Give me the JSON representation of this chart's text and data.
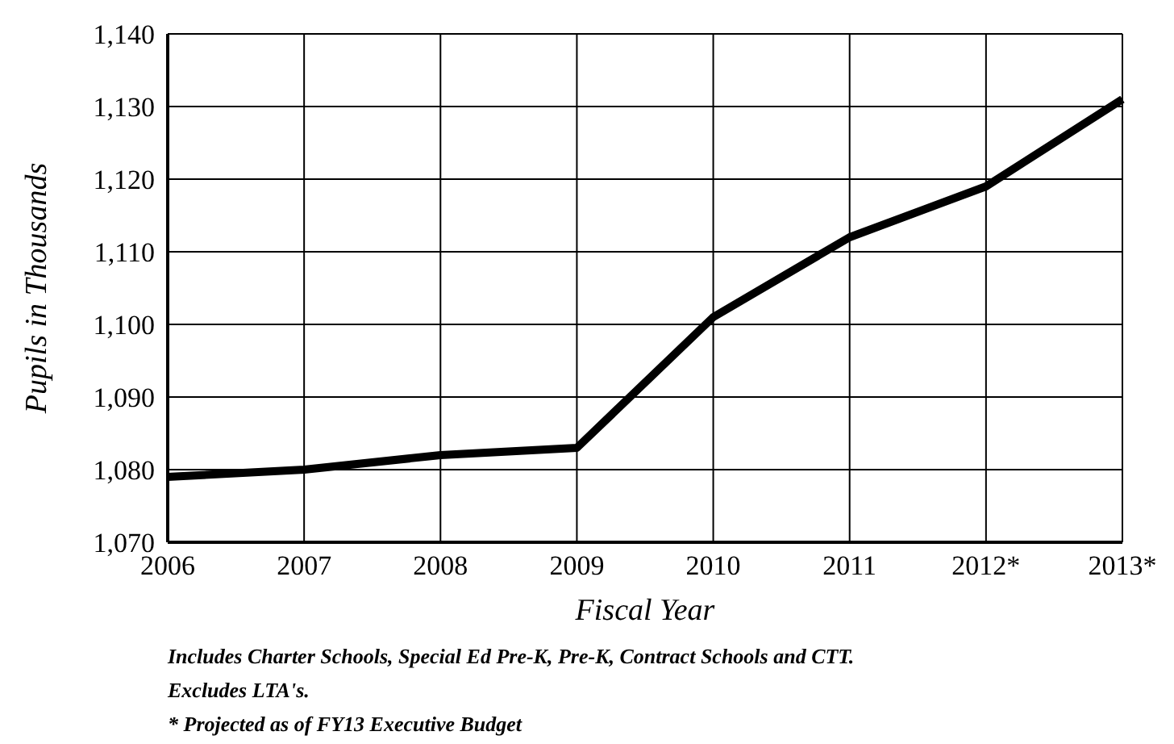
{
  "chart_data": {
    "type": "line",
    "xlabel": "Fiscal Year",
    "ylabel": "Pupils in Thousands",
    "categories": [
      "2006",
      "2007",
      "2008",
      "2009",
      "2010",
      "2011",
      "2012*",
      "2013*"
    ],
    "series": [
      {
        "color": "#000000",
        "values": [
          1079,
          1080,
          1082,
          1083,
          1101,
          1112,
          1119,
          1131
        ]
      }
    ],
    "ylim": [
      1070,
      1140
    ],
    "yticks": [
      {
        "value": 1070,
        "label": "1,070"
      },
      {
        "value": 1080,
        "label": "1,080"
      },
      {
        "value": 1090,
        "label": "1,090"
      },
      {
        "value": 1100,
        "label": "1,100"
      },
      {
        "value": 1110,
        "label": "1,110"
      },
      {
        "value": 1120,
        "label": "1,120"
      },
      {
        "value": 1130,
        "label": "1,130"
      },
      {
        "value": 1140,
        "label": "1,140"
      }
    ],
    "grid": true,
    "legend": false,
    "marker": "none",
    "line_style": "solid",
    "annotations": [
      "Includes Charter Schools, Special Ed Pre-K, Pre-K, Contract Schools and CTT.",
      "Excludes LTA's.",
      "* Projected as of FY13 Executive Budget"
    ]
  }
}
